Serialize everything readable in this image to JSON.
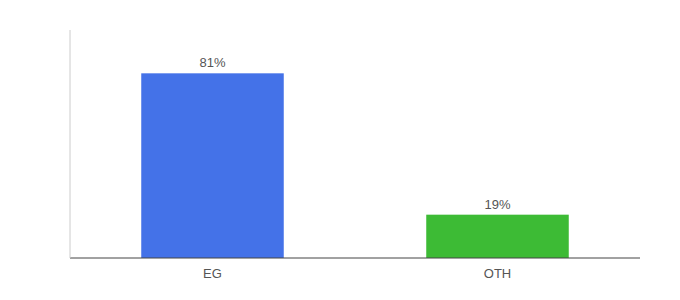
{
  "chart_data": {
    "type": "bar",
    "categories": [
      "EG",
      "OTH"
    ],
    "values": [
      81,
      19
    ],
    "value_labels": [
      "81%",
      "19%"
    ],
    "colors": [
      "#4472e8",
      "#3dbb35"
    ],
    "ylim": [
      0,
      100
    ],
    "tick_labels": "x",
    "data_labels": true
  }
}
